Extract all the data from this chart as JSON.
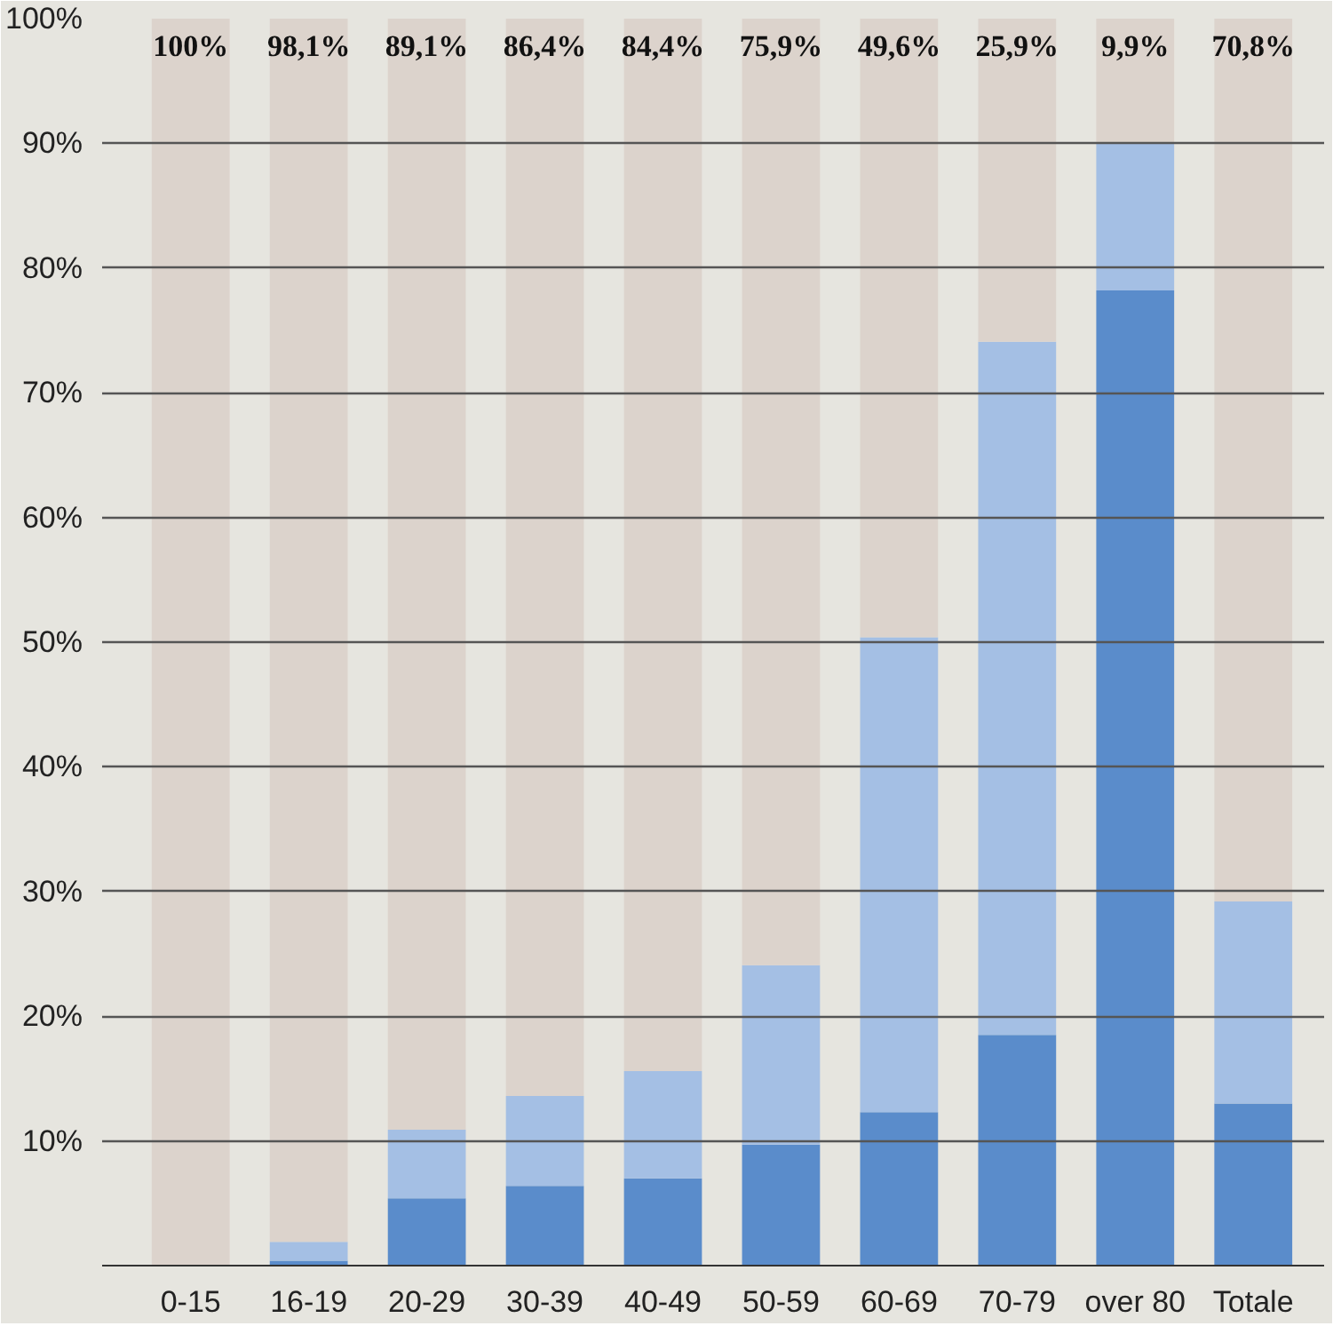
{
  "chart_data": {
    "type": "bar",
    "stacked": true,
    "categories": [
      "0-15",
      "16-19",
      "20-29",
      "30-39",
      "40-49",
      "50-59",
      "60-69",
      "70-79",
      "over 80",
      "Totale"
    ],
    "series": [
      {
        "color": "#5a8ccb",
        "values": [
          0,
          0.4,
          5.4,
          6.4,
          7.0,
          9.7,
          12.3,
          18.5,
          78.2,
          13.0
        ]
      },
      {
        "color": "#a4bfe4",
        "values": [
          0,
          1.5,
          5.5,
          7.2,
          8.6,
          14.4,
          38.1,
          55.6,
          11.9,
          16.2
        ]
      },
      {
        "color": "#dcd3cc",
        "values": [
          100,
          98.1,
          89.1,
          86.4,
          84.4,
          75.9,
          49.6,
          25.9,
          9.9,
          70.8
        ],
        "value_labels": [
          "100%",
          "98,1%",
          "89,1%",
          "86,4%",
          "84,4%",
          "75,9%",
          "49,6%",
          "25,9%",
          "9,9%",
          "70,8%"
        ]
      }
    ],
    "ylim": [
      0,
      100
    ],
    "yticks": [
      {
        "value": 10,
        "label": "10%"
      },
      {
        "value": 20,
        "label": "20%"
      },
      {
        "value": 30,
        "label": "30%"
      },
      {
        "value": 40,
        "label": "40%"
      },
      {
        "value": 50,
        "label": "50%"
      },
      {
        "value": 60,
        "label": "60%"
      },
      {
        "value": 70,
        "label": "70%"
      },
      {
        "value": 80,
        "label": "80%"
      },
      {
        "value": 90,
        "label": "90%"
      },
      {
        "value": 100,
        "label": "100%"
      }
    ],
    "grid": "y"
  }
}
